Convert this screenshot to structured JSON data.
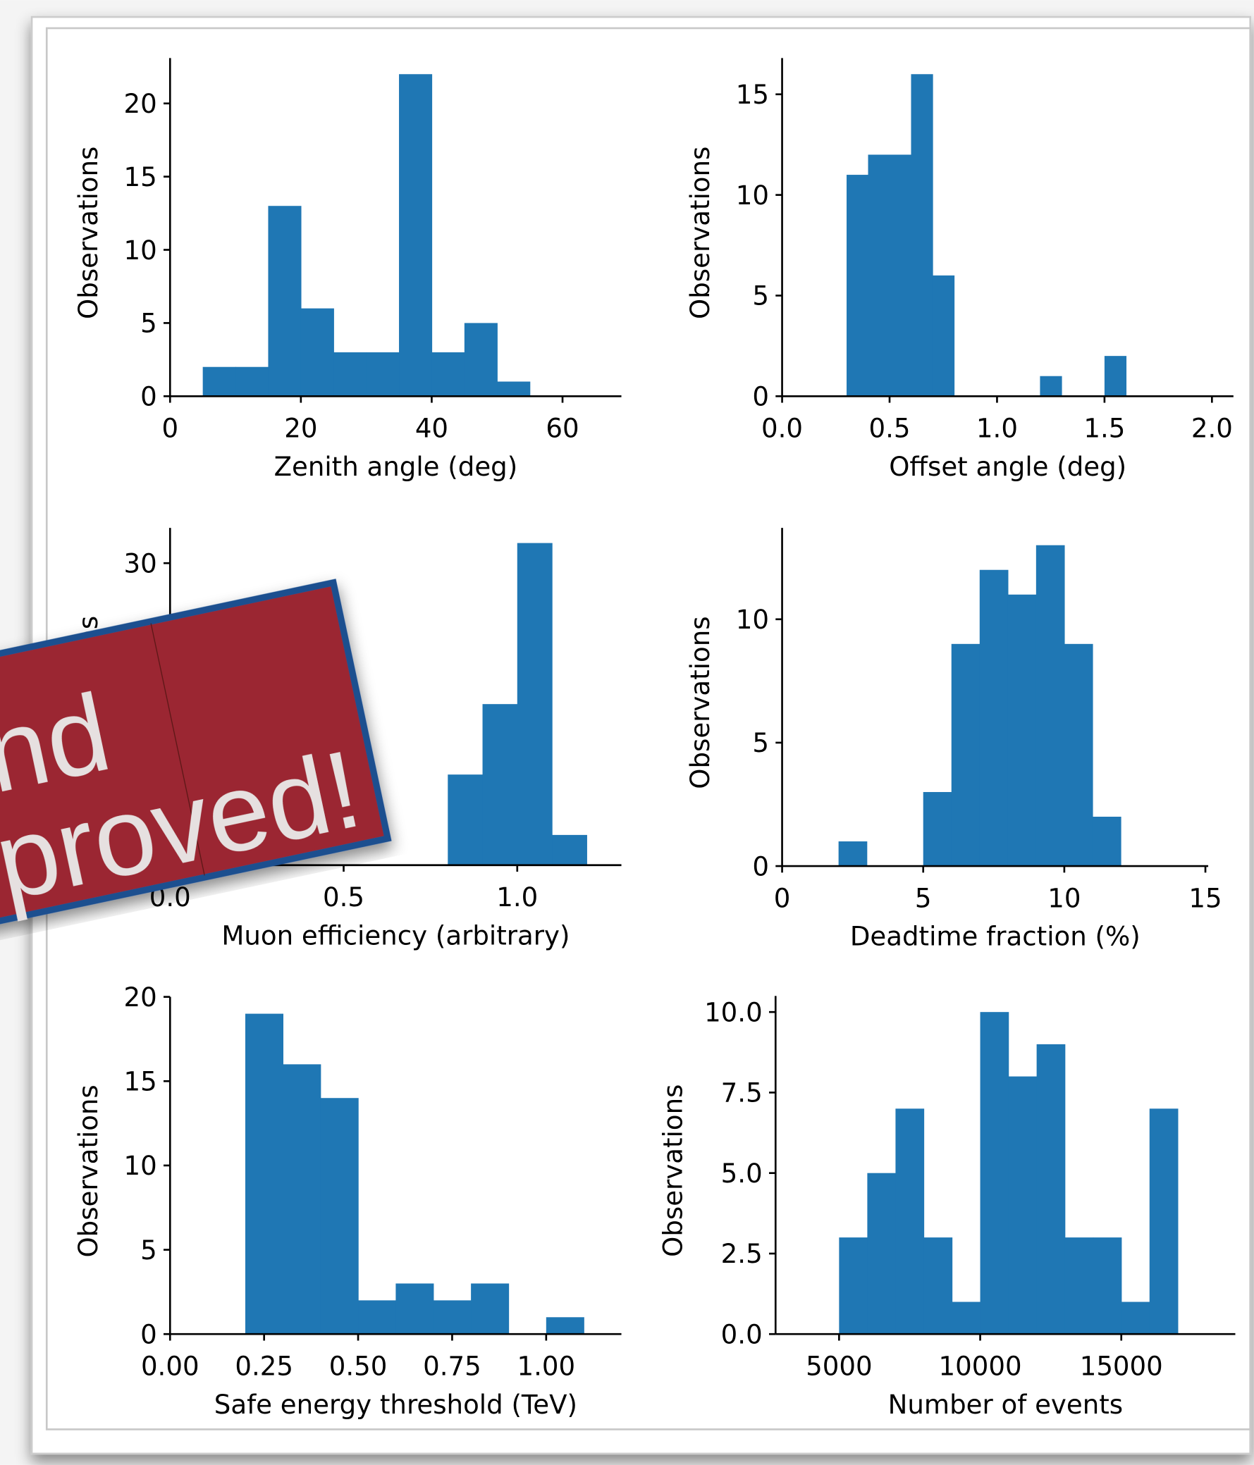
{
  "chart_data": [
    {
      "type": "histogram",
      "xlabel": "Zenith angle (deg)",
      "ylabel": "Observations",
      "color": "#1f77b4",
      "bins": [
        5,
        10,
        15,
        20,
        25,
        30,
        35,
        40,
        45,
        50,
        55
      ],
      "values": [
        2,
        2,
        13,
        6,
        3,
        3,
        22,
        3,
        5,
        1
      ],
      "xlim": [
        0,
        69
      ],
      "ylim": [
        0,
        23.1
      ],
      "xticks": [
        0,
        20,
        40,
        60
      ],
      "yticks": [
        0,
        5,
        10,
        15,
        20
      ]
    },
    {
      "type": "histogram",
      "xlabel": "Offset angle (deg)",
      "ylabel": "Observations",
      "color": "#1f77b4",
      "bins": [
        0.3,
        0.4,
        0.5,
        0.6,
        0.7,
        0.8,
        0.9,
        1.0,
        1.1,
        1.2,
        1.3,
        1.4,
        1.5,
        1.6
      ],
      "values": [
        11,
        12,
        12,
        16,
        6,
        0,
        0,
        0,
        0,
        1,
        0,
        0,
        2
      ],
      "xlim": [
        0,
        2.1
      ],
      "ylim": [
        0,
        16.8
      ],
      "xticks": [
        {
          "value": 0,
          "label": "0.0"
        },
        0.5,
        {
          "value": 1,
          "label": "1.0"
        },
        1.5,
        {
          "value": 2,
          "label": "2.0"
        }
      ],
      "yticks": [
        0,
        5,
        10,
        15
      ]
    },
    {
      "type": "histogram",
      "xlabel": "Muon efficiency (arbitrary)",
      "ylabel": "Observations",
      "color": "#1f77b4",
      "bins": [
        0.8,
        0.9,
        1.0,
        1.1,
        1.2
      ],
      "values": [
        9,
        16,
        32,
        3
      ],
      "xlim": [
        0,
        1.3
      ],
      "ylim": [
        0,
        33.5
      ],
      "xticks": [
        {
          "value": 0,
          "label": "0.0"
        },
        0.5,
        {
          "value": 1,
          "label": "1.0"
        }
      ],
      "yticks": [
        0,
        10,
        20,
        30
      ]
    },
    {
      "type": "histogram",
      "xlabel": "Deadtime fraction (%)",
      "ylabel": "Observations",
      "color": "#1f77b4",
      "bins": [
        2,
        3,
        4,
        5,
        6,
        7,
        8,
        9,
        10,
        11,
        12
      ],
      "values": [
        1,
        0,
        0,
        3,
        9,
        12,
        11,
        13,
        9,
        2
      ],
      "xlim": [
        0,
        15.1
      ],
      "ylim": [
        0,
        13.7
      ],
      "xticks": [
        0,
        5,
        10,
        15
      ],
      "yticks": [
        0,
        5,
        10
      ]
    },
    {
      "type": "histogram",
      "xlabel": "Safe energy threshold (TeV)",
      "ylabel": "Observations",
      "color": "#1f77b4",
      "bins": [
        0.2,
        0.3,
        0.4,
        0.5,
        0.6,
        0.7,
        0.8,
        0.9,
        1.0,
        1.1
      ],
      "values": [
        19,
        16,
        14,
        2,
        3,
        2,
        3,
        0,
        1
      ],
      "xlim": [
        0,
        1.2
      ],
      "ylim": [
        0,
        20
      ],
      "xticks": [
        {
          "value": 0,
          "label": "0.00"
        },
        0.25,
        {
          "value": 0.5,
          "label": "0.50"
        },
        0.75,
        {
          "value": 1,
          "label": "1.00"
        }
      ],
      "yticks": [
        0,
        5,
        10,
        15,
        20
      ]
    },
    {
      "type": "histogram",
      "xlabel": "Number of events",
      "ylabel": "Observations",
      "color": "#1f77b4",
      "bins": [
        5000,
        6000,
        7000,
        8000,
        9000,
        10000,
        11000,
        12000,
        13000,
        14000,
        15000,
        16000,
        17000
      ],
      "values": [
        3,
        5,
        7,
        3,
        1,
        10,
        8,
        9,
        3,
        3,
        1,
        7
      ],
      "xlim": [
        2750,
        19040
      ],
      "ylim": [
        0,
        10.5
      ],
      "xticks": [
        5000,
        10000,
        15000
      ],
      "yticks": [
        {
          "value": 0,
          "label": "0.0"
        },
        2.5,
        {
          "value": 5,
          "label": "5.0"
        },
        7.5,
        {
          "value": 10,
          "label": "10.0"
        }
      ]
    }
  ],
  "stamp": {
    "lines": [
      "nd",
      "proved!"
    ]
  }
}
